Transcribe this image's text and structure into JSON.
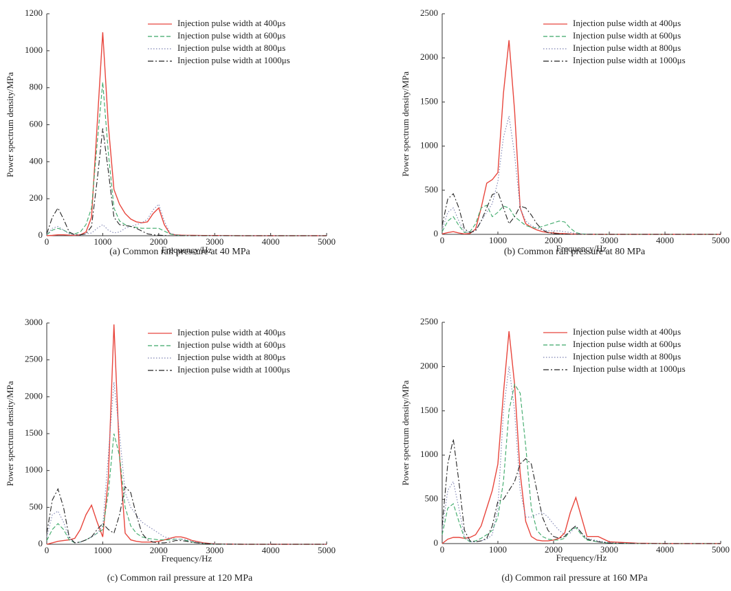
{
  "chart_data": [
    {
      "type": "line",
      "caption": "(a) Common rail pressure at 40 MPa",
      "x_label": "Frequency/Hz",
      "y_label": "Power spectrum density/MPa",
      "x": [
        0,
        100,
        200,
        300,
        400,
        500,
        600,
        700,
        800,
        900,
        1000,
        1100,
        1200,
        1300,
        1400,
        1500,
        1600,
        1700,
        1800,
        1900,
        2000,
        2100,
        2200,
        2300,
        2400,
        2500,
        2600,
        2800,
        3000,
        3500,
        4000,
        4500,
        5000
      ],
      "xlim": [
        0,
        5000
      ],
      "xticks": [
        0,
        1000,
        2000,
        3000,
        4000,
        5000
      ],
      "ylim": [
        0,
        1200
      ],
      "yticks": [
        0,
        200,
        400,
        600,
        800,
        1000,
        1200
      ],
      "legend": "upper right",
      "series": [
        {
          "name": "Injection pulse width at 400μs",
          "color": "#e8453c",
          "style": "solid",
          "values": [
            0,
            2,
            5,
            5,
            3,
            2,
            5,
            20,
            100,
            600,
            1100,
            600,
            250,
            170,
            120,
            90,
            75,
            70,
            75,
            120,
            150,
            60,
            10,
            5,
            3,
            2,
            2,
            1,
            1,
            0,
            0,
            0,
            0
          ]
        },
        {
          "name": "Injection pulse width at 600μs",
          "color": "#3aa867",
          "style": "dashed",
          "values": [
            5,
            30,
            40,
            30,
            15,
            10,
            20,
            60,
            150,
            500,
            830,
            450,
            150,
            80,
            60,
            50,
            45,
            40,
            40,
            40,
            40,
            25,
            10,
            3,
            1,
            0,
            0,
            0,
            0,
            0,
            0,
            0,
            0
          ]
        },
        {
          "name": "Injection pulse width at 800μs",
          "color": "#7a7fb0",
          "style": "dotted",
          "values": [
            5,
            40,
            50,
            30,
            10,
            3,
            5,
            10,
            15,
            40,
            60,
            30,
            15,
            20,
            40,
            50,
            60,
            70,
            90,
            140,
            170,
            80,
            15,
            5,
            2,
            1,
            0,
            0,
            0,
            0,
            0,
            0,
            0
          ]
        },
        {
          "name": "Injection pulse width at 1000μs",
          "color": "#222222",
          "style": "dashdot",
          "values": [
            10,
            100,
            150,
            90,
            20,
            5,
            5,
            10,
            50,
            300,
            580,
            350,
            100,
            60,
            55,
            50,
            40,
            25,
            10,
            5,
            3,
            1,
            0,
            0,
            0,
            0,
            0,
            0,
            0,
            0,
            0,
            0,
            0
          ]
        }
      ]
    },
    {
      "type": "line",
      "caption": "(b) Common rail pressure at 80 MPa",
      "x_label": "Frequency/Hz",
      "y_label": "Power spectrum density/MPa",
      "x": [
        0,
        100,
        200,
        300,
        400,
        500,
        600,
        700,
        800,
        900,
        1000,
        1100,
        1200,
        1300,
        1400,
        1500,
        1600,
        1700,
        1800,
        1900,
        2000,
        2100,
        2200,
        2300,
        2400,
        2500,
        2600,
        2800,
        3000,
        3500,
        4000,
        4500,
        5000
      ],
      "xlim": [
        0,
        5000
      ],
      "xticks": [
        0,
        1000,
        2000,
        3000,
        4000,
        5000
      ],
      "ylim": [
        0,
        2500
      ],
      "yticks": [
        0,
        500,
        1000,
        1500,
        2000,
        2500
      ],
      "legend": "upper right",
      "series": [
        {
          "name": "Injection pulse width at 400μs",
          "color": "#e8453c",
          "style": "solid",
          "values": [
            5,
            20,
            30,
            15,
            5,
            10,
            60,
            300,
            580,
            620,
            700,
            1600,
            2200,
            1400,
            300,
            120,
            80,
            50,
            30,
            20,
            15,
            10,
            8,
            5,
            3,
            2,
            1,
            0,
            0,
            0,
            0,
            0,
            0
          ]
        },
        {
          "name": "Injection pulse width at 600μs",
          "color": "#3aa867",
          "style": "dashed",
          "values": [
            30,
            150,
            200,
            100,
            20,
            30,
            120,
            300,
            330,
            200,
            250,
            320,
            300,
            200,
            150,
            100,
            80,
            70,
            90,
            110,
            130,
            150,
            140,
            70,
            20,
            5,
            2,
            0,
            0,
            0,
            0,
            0,
            0
          ]
        },
        {
          "name": "Injection pulse width at 800μs",
          "color": "#7a7fb0",
          "style": "dotted",
          "values": [
            50,
            250,
            300,
            150,
            30,
            20,
            50,
            150,
            250,
            350,
            600,
            1100,
            1340,
            900,
            300,
            150,
            100,
            70,
            50,
            40,
            40,
            40,
            30,
            20,
            10,
            5,
            2,
            0,
            0,
            0,
            0,
            0,
            0
          ]
        },
        {
          "name": "Injection pulse width at 1000μs",
          "color": "#222222",
          "style": "dashdot",
          "values": [
            100,
            400,
            460,
            300,
            60,
            20,
            40,
            150,
            300,
            450,
            480,
            300,
            120,
            200,
            320,
            300,
            220,
            120,
            50,
            20,
            10,
            5,
            2,
            0,
            0,
            0,
            0,
            0,
            0,
            0,
            0,
            0,
            0
          ]
        }
      ]
    },
    {
      "type": "line",
      "caption": "(c) Common rail pressure at 120 MPa",
      "x_label": "Frequency/Hz",
      "y_label": "Power spectrum density/MPa",
      "x": [
        0,
        100,
        200,
        300,
        400,
        500,
        600,
        700,
        800,
        900,
        1000,
        1100,
        1200,
        1300,
        1400,
        1500,
        1600,
        1700,
        1800,
        1900,
        2000,
        2100,
        2200,
        2300,
        2400,
        2500,
        2600,
        2800,
        3000,
        3500,
        4000,
        4500,
        5000
      ],
      "xlim": [
        0,
        5000
      ],
      "xticks": [
        0,
        1000,
        2000,
        3000,
        4000,
        5000
      ],
      "ylim": [
        0,
        3000
      ],
      "yticks": [
        0,
        500,
        1000,
        1500,
        2000,
        2500,
        3000
      ],
      "legend": "upper right",
      "series": [
        {
          "name": "Injection pulse width at 400μs",
          "color": "#e8453c",
          "style": "solid",
          "values": [
            0,
            20,
            40,
            50,
            60,
            80,
            200,
            400,
            530,
            300,
            100,
            900,
            2980,
            1200,
            150,
            60,
            40,
            30,
            30,
            30,
            40,
            60,
            80,
            100,
            100,
            80,
            50,
            20,
            5,
            0,
            0,
            0,
            0
          ]
        },
        {
          "name": "Injection pulse width at 600μs",
          "color": "#3aa867",
          "style": "dashed",
          "values": [
            50,
            200,
            280,
            200,
            60,
            20,
            30,
            60,
            100,
            150,
            200,
            700,
            1500,
            1200,
            500,
            250,
            150,
            100,
            80,
            70,
            60,
            60,
            60,
            70,
            70,
            50,
            30,
            10,
            2,
            0,
            0,
            0,
            0
          ]
        },
        {
          "name": "Injection pulse width at 800μs",
          "color": "#7a7fb0",
          "style": "dotted",
          "values": [
            100,
            400,
            450,
            300,
            80,
            20,
            30,
            60,
            100,
            150,
            250,
            1200,
            2200,
            1500,
            700,
            500,
            400,
            300,
            250,
            200,
            150,
            100,
            80,
            70,
            70,
            60,
            40,
            15,
            5,
            0,
            0,
            0,
            0
          ]
        },
        {
          "name": "Injection pulse width at 1000μs",
          "color": "#222222",
          "style": "dashdot",
          "values": [
            150,
            600,
            750,
            500,
            100,
            20,
            30,
            60,
            100,
            200,
            280,
            200,
            150,
            400,
            780,
            700,
            400,
            150,
            60,
            30,
            20,
            20,
            30,
            50,
            50,
            40,
            25,
            10,
            2,
            0,
            0,
            0,
            0
          ]
        }
      ]
    },
    {
      "type": "line",
      "caption": "(d) Common rail pressure at 160 MPa",
      "x_label": "Frequency/Hz",
      "y_label": "Power spectrum density/MPa",
      "x": [
        0,
        100,
        200,
        300,
        400,
        500,
        600,
        700,
        800,
        900,
        1000,
        1100,
        1200,
        1300,
        1400,
        1500,
        1600,
        1700,
        1800,
        1900,
        2000,
        2100,
        2200,
        2300,
        2400,
        2500,
        2600,
        2800,
        3000,
        3500,
        4000,
        4500,
        5000
      ],
      "xlim": [
        0,
        5000
      ],
      "xticks": [
        0,
        1000,
        2000,
        3000,
        4000,
        5000
      ],
      "ylim": [
        0,
        2500
      ],
      "yticks": [
        0,
        500,
        1000,
        1500,
        2000,
        2500
      ],
      "legend": "upper right",
      "series": [
        {
          "name": "Injection pulse width at 400μs",
          "color": "#e8453c",
          "style": "solid",
          "values": [
            0,
            50,
            70,
            70,
            60,
            70,
            100,
            200,
            400,
            600,
            900,
            1700,
            2400,
            1800,
            800,
            250,
            80,
            40,
            30,
            30,
            40,
            60,
            120,
            350,
            520,
            300,
            80,
            80,
            20,
            5,
            0,
            0,
            0
          ]
        },
        {
          "name": "Injection pulse width at 600μs",
          "color": "#3aa867",
          "style": "dashed",
          "values": [
            100,
            400,
            450,
            250,
            60,
            20,
            30,
            60,
            100,
            150,
            300,
            700,
            1500,
            1800,
            1700,
            1100,
            400,
            150,
            80,
            50,
            40,
            40,
            60,
            150,
            180,
            100,
            40,
            20,
            5,
            0,
            0,
            0,
            0
          ]
        },
        {
          "name": "Injection pulse width at 800μs",
          "color": "#7a7fb0",
          "style": "dotted",
          "values": [
            150,
            600,
            700,
            400,
            80,
            20,
            20,
            30,
            50,
            100,
            400,
            1500,
            2000,
            1500,
            600,
            300,
            300,
            330,
            350,
            300,
            220,
            150,
            100,
            120,
            200,
            120,
            60,
            30,
            10,
            0,
            0,
            0,
            0
          ]
        },
        {
          "name": "Injection pulse width at 1000μs",
          "color": "#222222",
          "style": "dashdot",
          "values": [
            200,
            900,
            1180,
            700,
            150,
            30,
            20,
            30,
            60,
            200,
            480,
            500,
            600,
            700,
            900,
            960,
            900,
            600,
            300,
            150,
            80,
            60,
            80,
            150,
            200,
            120,
            50,
            20,
            5,
            0,
            0,
            0,
            0
          ]
        }
      ]
    }
  ]
}
